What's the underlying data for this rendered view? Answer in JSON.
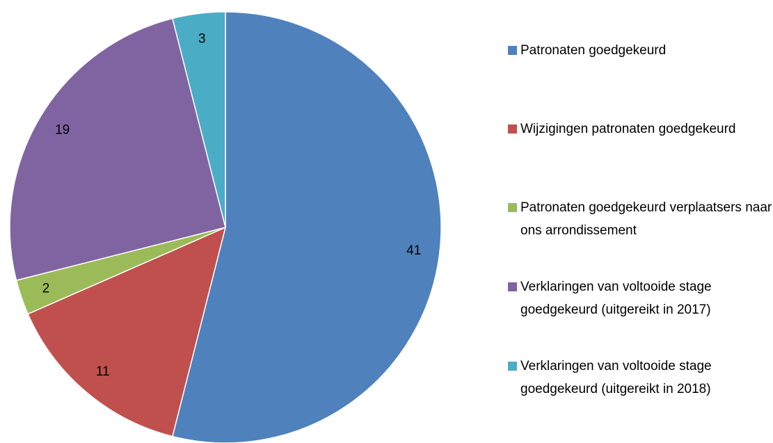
{
  "chart_data": {
    "type": "pie",
    "categories": [
      "Patronaten goedgekeurd",
      "Wijzigingen patronaten goedgekeurd",
      "Patronaten goedgekeurd verplaatsers naar ons arrondissement",
      "Verklaringen van voltooide stage goedgekeurd (uitgereikt in 2017)",
      "Verklaringen van voltooide stage goedgekeurd (uitgereikt in 2018)"
    ],
    "values": [
      41,
      11,
      2,
      19,
      3
    ],
    "colors": [
      "#4f81bd",
      "#c0504d",
      "#9bbb59",
      "#8064a2",
      "#4bacc6"
    ],
    "legend": "right"
  }
}
